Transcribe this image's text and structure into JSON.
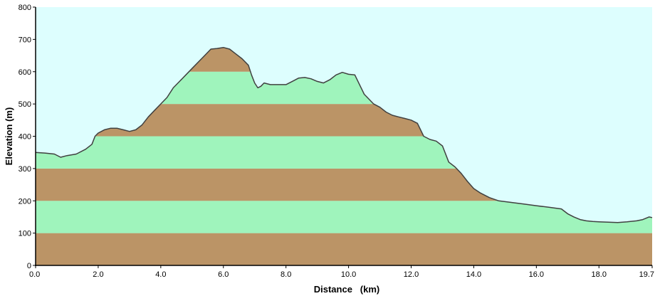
{
  "chart_data": {
    "type": "area",
    "title": "",
    "xlabel": "Distance   (km)",
    "ylabel": "Elevation (m)",
    "xlim": [
      0,
      19.7
    ],
    "ylim": [
      0,
      800
    ],
    "x_ticks": [
      "0.0",
      "2.0",
      "4.0",
      "6.0",
      "8.0",
      "10.0",
      "12.0",
      "14.0",
      "16.0",
      "18.0",
      "19.7"
    ],
    "y_ticks": [
      "0",
      "100",
      "200",
      "300",
      "400",
      "500",
      "600",
      "700",
      "800"
    ],
    "band_step": 100,
    "colors": {
      "sky": "#ddfefe",
      "band_brown": "#bb9466",
      "band_green": "#9ff4bc",
      "profile_line": "#404040",
      "axis": "#000000"
    },
    "series": [
      {
        "x": [
          0.0,
          0.3,
          0.6,
          0.8,
          1.0,
          1.3,
          1.6,
          1.8,
          1.9,
          2.0,
          2.2,
          2.4,
          2.6,
          2.8,
          3.0,
          3.2,
          3.4,
          3.6,
          3.8,
          4.0,
          4.2,
          4.4,
          4.6,
          4.8,
          5.0,
          5.2,
          5.4,
          5.6,
          5.8,
          6.0,
          6.2,
          6.4,
          6.6,
          6.8,
          6.9,
          7.0,
          7.1,
          7.2,
          7.3,
          7.5,
          7.8,
          8.0,
          8.2,
          8.4,
          8.6,
          8.8,
          9.0,
          9.2,
          9.4,
          9.6,
          9.8,
          10.0,
          10.2,
          10.4,
          10.5,
          10.6,
          10.8,
          11.0,
          11.2,
          11.4,
          11.6,
          11.8,
          12.0,
          12.2,
          12.4,
          12.6,
          12.8,
          13.0,
          13.2,
          13.4,
          13.6,
          13.8,
          14.0,
          14.2,
          14.5,
          14.8,
          15.2,
          15.6,
          16.0,
          16.4,
          16.8,
          17.0,
          17.2,
          17.4,
          17.6,
          17.8,
          18.0,
          18.3,
          18.6,
          18.9,
          19.2,
          19.4,
          19.6,
          19.7
        ],
        "y": [
          350,
          348,
          345,
          335,
          340,
          345,
          360,
          375,
          400,
          410,
          420,
          425,
          425,
          420,
          415,
          420,
          435,
          460,
          480,
          500,
          520,
          550,
          570,
          590,
          610,
          630,
          650,
          670,
          672,
          675,
          670,
          655,
          640,
          620,
          590,
          565,
          550,
          555,
          565,
          560,
          560,
          560,
          570,
          580,
          582,
          578,
          570,
          565,
          575,
          590,
          598,
          592,
          590,
          550,
          530,
          520,
          500,
          490,
          475,
          465,
          460,
          455,
          450,
          440,
          400,
          390,
          385,
          370,
          320,
          305,
          285,
          260,
          238,
          225,
          210,
          200,
          195,
          190,
          185,
          180,
          175,
          160,
          150,
          142,
          138,
          136,
          135,
          134,
          133,
          135,
          138,
          142,
          150,
          148
        ]
      }
    ]
  }
}
